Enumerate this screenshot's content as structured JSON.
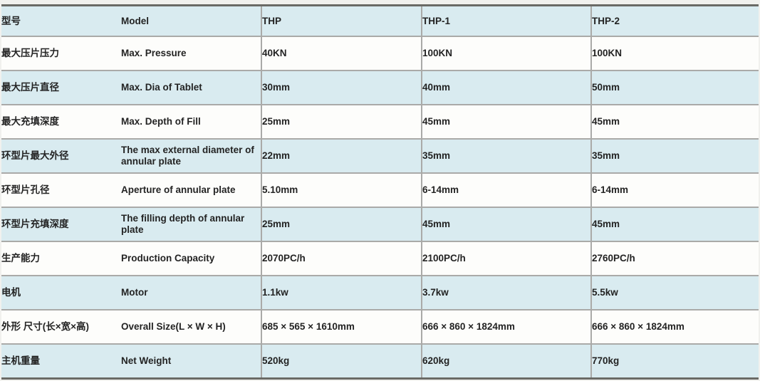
{
  "colors": {
    "row_blue": "#d9ebf0",
    "row_white": "#fdfdfb",
    "grid_line": "#aaaaa8",
    "frame_line": "#6a6a66",
    "text": "#232323",
    "page_background": "#f1f1ee"
  },
  "table": {
    "header": {
      "label_cn": "型号",
      "label_en": "Model",
      "thp": "THP",
      "thp1": "THP-1",
      "thp2": "THP-2"
    },
    "rows": [
      {
        "label_cn": "最大压片压力",
        "label_en": "Max. Pressure",
        "thp": "40KN",
        "thp1": "100KN",
        "thp2": "100KN"
      },
      {
        "label_cn": "最大压片直径",
        "label_en": "Max. Dia of Tablet",
        "thp": "30mm",
        "thp1": "40mm",
        "thp2": "50mm"
      },
      {
        "label_cn": "最大充填深度",
        "label_en": "Max. Depth of Fill",
        "thp": "25mm",
        "thp1": "45mm",
        "thp2": "45mm"
      },
      {
        "label_cn": "环型片最大外径",
        "label_en": "The max external diameter of annular plate",
        "thp": "22mm",
        "thp1": "35mm",
        "thp2": "35mm"
      },
      {
        "label_cn": "环型片孔径",
        "label_en": "Aperture of annular plate",
        "thp": "5.10mm",
        "thp1": "6-14mm",
        "thp2": "6-14mm"
      },
      {
        "label_cn": "环型片充填深度",
        "label_en": "The filling depth of annular plate",
        "thp": "25mm",
        "thp1": "45mm",
        "thp2": "45mm"
      },
      {
        "label_cn": "生产能力",
        "label_en": "Production Capacity",
        "thp": "2070PC/h",
        "thp1": "2100PC/h",
        "thp2": "2760PC/h"
      },
      {
        "label_cn": "电机",
        "label_en": "Motor",
        "thp": "1.1kw",
        "thp1": "3.7kw",
        "thp2": "5.5kw"
      },
      {
        "label_cn": "外形 尺寸(长×宽×高)",
        "label_en": "Overall Size(L × W × H)",
        "thp": "685 × 565 × 1610mm",
        "thp1": "666 × 860 × 1824mm",
        "thp2": "666 × 860 × 1824mm"
      },
      {
        "label_cn": "主机重量",
        "label_en": "Net Weight",
        "thp": "520kg",
        "thp1": "620kg",
        "thp2": "770kg"
      }
    ]
  }
}
